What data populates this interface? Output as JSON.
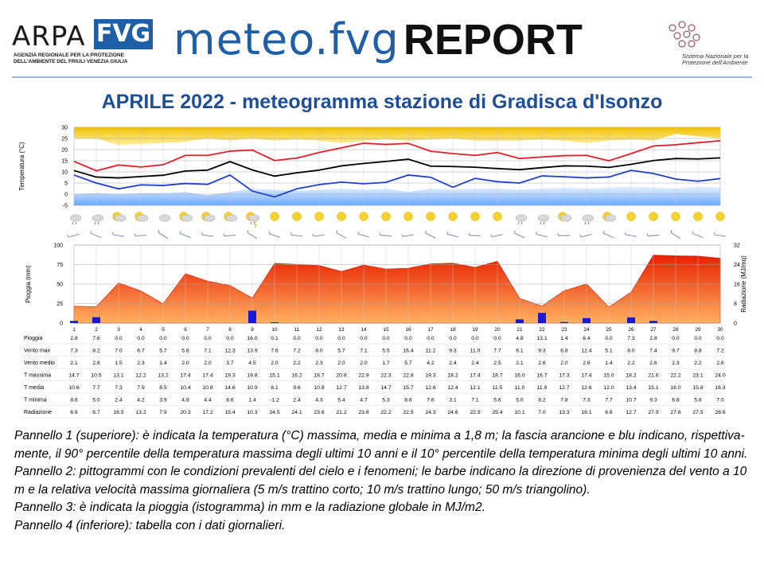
{
  "header": {
    "arpa_word": "ARPA",
    "fvg_word": "FVG",
    "arpa_subtitle": "agenzia regionale per la protezione dell'ambiente del friuli venezia giulia",
    "brand_main": "meteo.fvg",
    "brand_report": "REPORT",
    "snpa_text": "Sistema Nazionale per la Protezione dell'Ambiente"
  },
  "title": {
    "part1": "APRILE 2022 - ",
    "part2": "meteogramma  stazione di Gradisca d'Isonzo"
  },
  "colors": {
    "tmax": "#e0202a",
    "tmed": "#000000",
    "tmin": "#1f3fd0",
    "p90_band": "#f0c000",
    "p10_band": "#6aa8ff",
    "rain": "#1a1ad0",
    "radiation_top": "#e82000",
    "radiation_bottom": "#ffb060",
    "title": "#1f4e98",
    "brand": "#1f5fa8"
  },
  "chart_data": [
    {
      "type": "line",
      "panel": "temperature",
      "ylabel": "Temperatura (°C)",
      "ylim": [
        -5,
        30
      ],
      "yticks": [
        -5,
        0,
        5,
        10,
        15,
        20,
        25,
        30
      ],
      "x": [
        1,
        2,
        3,
        4,
        5,
        6,
        7,
        8,
        9,
        10,
        11,
        12,
        13,
        14,
        15,
        16,
        17,
        18,
        19,
        20,
        21,
        22,
        23,
        24,
        25,
        26,
        27,
        28,
        29,
        30
      ],
      "series": [
        {
          "name": "T massima",
          "values": [
            14.7,
            10.5,
            13.1,
            12.2,
            13.2,
            17.4,
            17.4,
            19.3,
            19.8,
            15.1,
            16.2,
            18.7,
            20.8,
            22.9,
            22.3,
            22.8,
            19.3,
            18.2,
            17.4,
            18.7,
            16.0,
            16.7,
            17.3,
            17.4,
            15.0,
            18.2,
            21.6,
            22.2,
            23.1,
            24.0
          ]
        },
        {
          "name": "T media",
          "values": [
            10.6,
            7.7,
            7.3,
            7.9,
            8.5,
            10.4,
            10.8,
            14.6,
            10.9,
            8.1,
            9.6,
            10.8,
            12.7,
            13.8,
            14.7,
            15.7,
            12.6,
            12.4,
            12.1,
            11.5,
            11.0,
            11.9,
            12.7,
            12.6,
            12.0,
            13.4,
            15.1,
            16.0,
            15.8,
            16.3
          ]
        },
        {
          "name": "T minima",
          "values": [
            8.6,
            5.0,
            2.4,
            4.2,
            3.9,
            4.8,
            4.4,
            8.6,
            1.4,
            -1.2,
            2.4,
            4.3,
            5.4,
            4.7,
            5.3,
            8.6,
            7.6,
            3.1,
            7.1,
            5.6,
            5.0,
            8.2,
            7.8,
            7.3,
            7.7,
            10.7,
            9.3,
            6.8,
            5.8,
            7.0
          ]
        }
      ],
      "band_p90_top": [
        28,
        28,
        25,
        25.5,
        26,
        26.5,
        28,
        27,
        28,
        27,
        27.5,
        27,
        26,
        27,
        27.5,
        27,
        27.5,
        28,
        27,
        27,
        27,
        27.5,
        27,
        26,
        27,
        27.5,
        27,
        30,
        29,
        28
      ],
      "band_p10_top": [
        0,
        0.5,
        0,
        0.5,
        0.5,
        1,
        -0.5,
        1,
        2.5,
        2,
        1.5,
        2,
        2.5,
        2,
        2.5,
        1,
        2.5,
        2,
        2.5,
        2.5,
        2,
        2.5,
        3,
        2.5,
        3,
        3.5,
        3,
        2.5,
        3.5,
        3
      ]
    },
    {
      "type": "bar",
      "panel": "rain-radiation",
      "ylabel": "Pioggia (mm)",
      "ylabel_right": "Radiazione (MJ/mq)",
      "ylim": [
        0,
        100
      ],
      "yticks": [
        0,
        25,
        50,
        75,
        100
      ],
      "ylim_right": [
        0,
        32
      ],
      "yticks_right": [
        0,
        8,
        16,
        24,
        32
      ],
      "categories": [
        "1",
        "2",
        "3",
        "4",
        "5",
        "6",
        "7",
        "8",
        "9",
        "10",
        "11",
        "12",
        "13",
        "14",
        "15",
        "16",
        "17",
        "18",
        "19",
        "20",
        "21",
        "22",
        "23",
        "24",
        "25",
        "26",
        "27",
        "28",
        "29",
        "30"
      ],
      "series": [
        {
          "name": "Pioggia",
          "values": [
            2.8,
            7.6,
            0.0,
            0.0,
            0.0,
            0.0,
            0.0,
            0.0,
            16.0,
            0.1,
            0.0,
            0.0,
            0.0,
            0.0,
            0.0,
            0.0,
            0.0,
            0.0,
            0.0,
            0.0,
            4.8,
            13.1,
            1.4,
            6.4,
            0.0,
            7.3,
            2.8,
            0.0,
            0.0,
            0.0
          ]
        },
        {
          "name": "Radiazione",
          "values": [
            6.9,
            6.7,
            16.5,
            13.2,
            7.9,
            20.3,
            17.2,
            15.4,
            10.3,
            24.5,
            24.1,
            23.6,
            21.2,
            23.8,
            22.2,
            22.5,
            24.3,
            24.6,
            22.9,
            25.4,
            10.1,
            7.0,
            13.3,
            16.1,
            6.6,
            12.7,
            27.9,
            27.6,
            27.5,
            26.6
          ]
        }
      ]
    },
    {
      "type": "table",
      "panel": "daily-table",
      "columns": [
        "1",
        "2",
        "3",
        "4",
        "5",
        "6",
        "7",
        "8",
        "9",
        "10",
        "11",
        "12",
        "13",
        "14",
        "15",
        "16",
        "17",
        "18",
        "19",
        "20",
        "21",
        "22",
        "23",
        "24",
        "25",
        "26",
        "27",
        "28",
        "29",
        "30"
      ],
      "rows": [
        {
          "label": "Pioggia",
          "cells": [
            "2.8",
            "7.6",
            "0.0",
            "0.0",
            "0.0",
            "0.0",
            "0.0",
            "0.0",
            "16.0",
            "0.1",
            "0.0",
            "0.0",
            "0.0",
            "0.0",
            "0.0",
            "0.0",
            "0.0",
            "0.0",
            "0.0",
            "0.0",
            "4.8",
            "13.1",
            "1.4",
            "6.4",
            "0.0",
            "7.3",
            "2.8",
            "0.0",
            "0.0",
            "0.0"
          ]
        },
        {
          "label": "Vento max",
          "cells": [
            "7.3",
            "8.2",
            "7.0",
            "6.7",
            "5.7",
            "5.8",
            "7.1",
            "12.3",
            "13.9",
            "7.6",
            "7.2",
            "8.0",
            "5.7",
            "7.1",
            "5.5",
            "16.4",
            "11.2",
            "9.3",
            "11.0",
            "7.7",
            "6.1",
            "9.3",
            "6.8",
            "12.4",
            "5.1",
            "8.0",
            "7.4",
            "9.7",
            "8.8",
            "7.2"
          ]
        },
        {
          "label": "Vento medio",
          "cells": [
            "2.1",
            "2.8",
            "1.5",
            "2.3",
            "1.4",
            "2.0",
            "2.0",
            "3.7",
            "4.5",
            "2.0",
            "2.2",
            "2.3",
            "2.0",
            "2.0",
            "1.7",
            "5.7",
            "4.2",
            "2.4",
            "2.4",
            "2.5",
            "2.1",
            "2.6",
            "2.0",
            "2.6",
            "1.4",
            "2.2",
            "2.6",
            "2.3",
            "2.2",
            "2.6"
          ]
        },
        {
          "label": "T massima",
          "cells": [
            "14.7",
            "10.5",
            "13.1",
            "12.2",
            "13.2",
            "17.4",
            "17.4",
            "19.3",
            "19.8",
            "15.1",
            "16.2",
            "18.7",
            "20.8",
            "22.9",
            "22.3",
            "22.8",
            "19.3",
            "18.2",
            "17.4",
            "18.7",
            "16.0",
            "16.7",
            "17.3",
            "17.4",
            "15.0",
            "18.2",
            "21.6",
            "22.2",
            "23.1",
            "24.0"
          ]
        },
        {
          "label": "T media",
          "cells": [
            "10.6",
            "7.7",
            "7.3",
            "7.9",
            "8.5",
            "10.4",
            "10.8",
            "14.6",
            "10.9",
            "8.1",
            "9.6",
            "10.8",
            "12.7",
            "13.8",
            "14.7",
            "15.7",
            "12.6",
            "12.4",
            "12.1",
            "11.5",
            "11.0",
            "11.9",
            "12.7",
            "12.6",
            "12.0",
            "13.4",
            "15.1",
            "16.0",
            "15.8",
            "16.3"
          ]
        },
        {
          "label": "T minima",
          "cells": [
            "8.6",
            "5.0",
            "2.4",
            "4.2",
            "3.9",
            "4.8",
            "4.4",
            "8.6",
            "1.4",
            "-1.2",
            "2.4",
            "4.3",
            "5.4",
            "4.7",
            "5.3",
            "8.6",
            "7.6",
            "3.1",
            "7.1",
            "5.6",
            "5.0",
            "8.2",
            "7.8",
            "7.3",
            "7.7",
            "10.7",
            "9.3",
            "6.8",
            "5.8",
            "7.0"
          ]
        },
        {
          "label": "Radiazione",
          "cells": [
            "6.9",
            "6.7",
            "16.5",
            "13.2",
            "7.9",
            "20.3",
            "17.2",
            "15.4",
            "10.3",
            "24.5",
            "24.1",
            "23.6",
            "21.2",
            "23.8",
            "22.2",
            "22.5",
            "24.3",
            "24.6",
            "22.9",
            "25.4",
            "10.1",
            "7.0",
            "13.3",
            "16.1",
            "6.6",
            "12.7",
            "27.9",
            "27.6",
            "27.5",
            "26.6"
          ]
        }
      ]
    }
  ],
  "weather_icons": [
    "rain-icon",
    "rain-icon",
    "sun-cloud-icon",
    "sun-cloud-icon",
    "cloud-icon",
    "sun-cloud-icon",
    "sun-cloud-icon",
    "sun-cloud-icon",
    "storm-icon",
    "sun-icon",
    "sun-icon",
    "sun-icon",
    "sun-icon",
    "sun-icon",
    "sun-icon",
    "sun-icon",
    "sun-icon",
    "sun-icon",
    "sun-icon",
    "sun-icon",
    "rain-icon",
    "rain-icon",
    "sun-cloud-icon",
    "rain-icon",
    "sun-cloud-icon",
    "sun-icon",
    "sun-icon",
    "sun-icon",
    "sun-icon",
    "sun-icon"
  ],
  "caption": {
    "p1": "Pannello 1 (superiore): è indicata la temperatura (°C) massima, media e minima a 1,8 m; la fascia arancione e blu indicano, rispettiva-mente, il 90° percentile della temperatura massima degli ultimi 10 anni e il 10° percentile della temperatura minima degli ultimi 10 anni.",
    "p2": "Pannello 2: pittogrammi con le condizioni prevalenti del cielo e i fenomeni; le barbe indicano la direzione di provenienza del vento a 10 m e la relativa velocità massima giornaliera (5 m/s trattino corto; 10 m/s trattino lungo; 50 m/s triangolino).",
    "p3": "Pannello 3: è indicata la pioggia (istogramma) in mm e la radiazione globale in MJ/m2.",
    "p4": "Pannello 4 (inferiore): tabella con i dati giornalieri."
  }
}
